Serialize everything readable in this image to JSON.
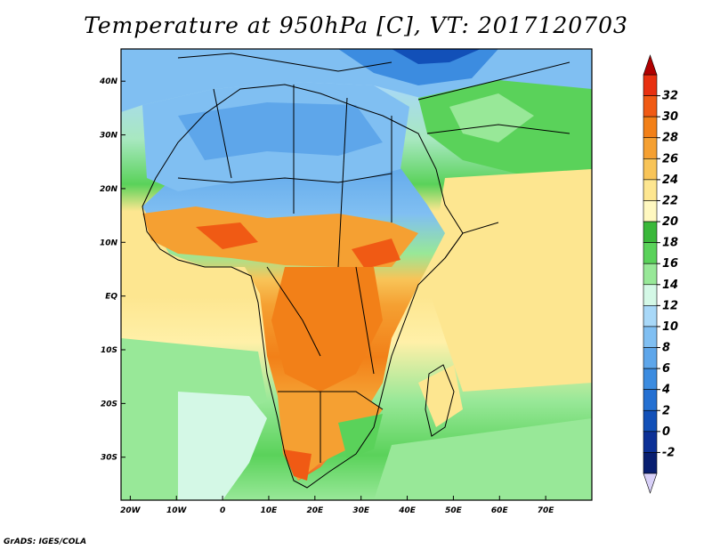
{
  "title": "Temperature at 950hPa [C], VT: 2017120703",
  "credit": "GrADS: IGES/COLA",
  "map": {
    "lon_range": [
      -22,
      80
    ],
    "lat_range": [
      -38,
      46
    ],
    "lon_ticks": [
      {
        "value": -20,
        "label": "20W"
      },
      {
        "value": -10,
        "label": "10W"
      },
      {
        "value": 0,
        "label": "0"
      },
      {
        "value": 10,
        "label": "10E"
      },
      {
        "value": 20,
        "label": "20E"
      },
      {
        "value": 30,
        "label": "30E"
      },
      {
        "value": 40,
        "label": "40E"
      },
      {
        "value": 50,
        "label": "50E"
      },
      {
        "value": 60,
        "label": "60E"
      },
      {
        "value": 70,
        "label": "70E"
      }
    ],
    "lat_ticks": [
      {
        "value": 40,
        "label": "40N"
      },
      {
        "value": 30,
        "label": "30N"
      },
      {
        "value": 20,
        "label": "20N"
      },
      {
        "value": 10,
        "label": "10N"
      },
      {
        "value": 0,
        "label": "EQ"
      },
      {
        "value": -10,
        "label": "10S"
      },
      {
        "value": -20,
        "label": "20S"
      },
      {
        "value": -30,
        "label": "30S"
      }
    ]
  },
  "colorbar": {
    "labels": [
      "32",
      "30",
      "28",
      "26",
      "24",
      "22",
      "20",
      "18",
      "16",
      "14",
      "12",
      "10",
      "8",
      "6",
      "4",
      "2",
      "0",
      "-2"
    ],
    "colors_top_to_bottom": [
      "#e83010",
      "#f05a14",
      "#f28018",
      "#f5a032",
      "#f8c458",
      "#fde690",
      "#fff8c0",
      "#3ab83a",
      "#5ad25a",
      "#98e898",
      "#d4f8e6",
      "#a8d8f8",
      "#80bff2",
      "#5ea6ea",
      "#3c8ce0",
      "#2470d2",
      "#1250b8",
      "#0c3096",
      "#081e70"
    ],
    "top_arrow_color": "#b00000",
    "bottom_arrow_color": "#d8d0f8"
  }
}
